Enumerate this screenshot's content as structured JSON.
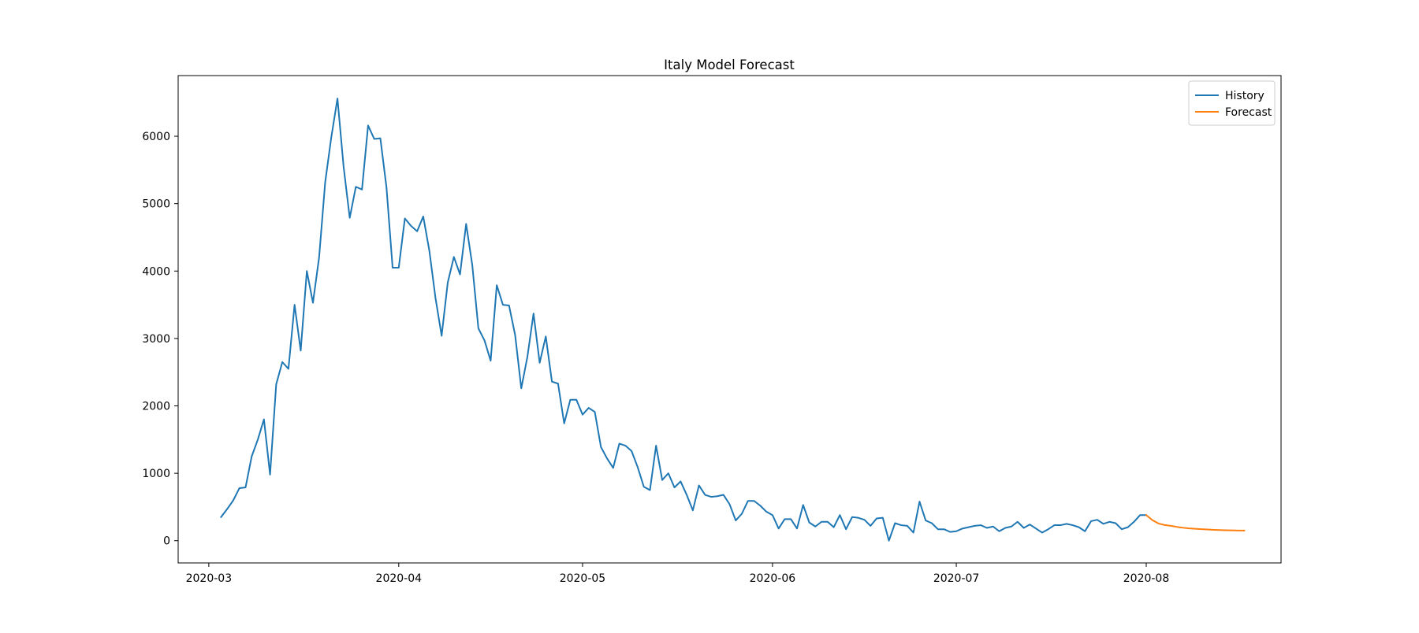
{
  "chart_data": {
    "type": "line",
    "title": "Italy Model Forecast",
    "xlabel": "",
    "ylabel": "",
    "x_ticks": [
      "2020-03",
      "2020-04",
      "2020-05",
      "2020-06",
      "2020-07",
      "2020-08"
    ],
    "y_ticks": [
      0,
      1000,
      2000,
      3000,
      4000,
      5000,
      6000
    ],
    "xlim": [
      "2020-02-25",
      "2020-08-23"
    ],
    "ylim": [
      -330,
      6900
    ],
    "grid": false,
    "legend": "top-right",
    "series": [
      {
        "name": "History",
        "color": "#1f77b4",
        "start_date": "2020-03-03",
        "values": [
          350,
          470,
          600,
          780,
          790,
          1250,
          1500,
          1800,
          980,
          2320,
          2650,
          2550,
          3500,
          2820,
          4000,
          3530,
          4200,
          5320,
          5990,
          6560,
          5550,
          4790,
          5250,
          5210,
          6160,
          5960,
          5970,
          5240,
          4050,
          4050,
          4780,
          4670,
          4590,
          4810,
          4300,
          3600,
          3040,
          3830,
          4210,
          3950,
          4700,
          4090,
          3150,
          2970,
          2670,
          3790,
          3500,
          3490,
          3050,
          2260,
          2730,
          3370,
          2640,
          3030,
          2360,
          2330,
          1740,
          2090,
          2090,
          1870,
          1970,
          1910,
          1390,
          1220,
          1080,
          1440,
          1410,
          1330,
          1090,
          800,
          750,
          1410,
          900,
          1000,
          790,
          880,
          680,
          450,
          820,
          680,
          650,
          660,
          680,
          540,
          300,
          400,
          590,
          590,
          520,
          430,
          380,
          180,
          320,
          320,
          180,
          530,
          270,
          210,
          280,
          280,
          200,
          380,
          170,
          350,
          340,
          310,
          220,
          330,
          340,
          0,
          260,
          230,
          220,
          120,
          580,
          300,
          260,
          170,
          170,
          130,
          140,
          180,
          200,
          220,
          230,
          190,
          210,
          140,
          190,
          210,
          280,
          190,
          240,
          180,
          120,
          170,
          230,
          230,
          250,
          230,
          200,
          140,
          290,
          310,
          250,
          280,
          260,
          170,
          200,
          280,
          380,
          380
        ]
      },
      {
        "name": "Forecast",
        "color": "#ff7f0e",
        "start_date": "2020-08-01",
        "values": [
          380,
          305,
          255,
          232,
          220,
          205,
          192,
          183,
          177,
          171,
          166,
          161,
          158,
          155,
          153,
          151,
          150
        ]
      }
    ]
  }
}
